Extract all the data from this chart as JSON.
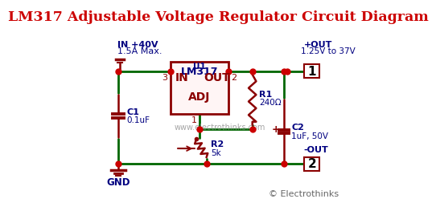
{
  "title": "LM317 Adjustable Voltage Regulator Circuit Diagram",
  "title_color": "#cc0000",
  "title_fontsize": 12.5,
  "bg_color": "#ffffff",
  "wire_color": "#006600",
  "component_color": "#8B0000",
  "label_color": "#000080",
  "node_color": "#cc0000",
  "watermark": "www.electrothinks.com",
  "watermark_color": "#888888",
  "copyright": "© Electrothinks",
  "copyright_color": "#666666",
  "in_label1": "IN +40V",
  "in_label2": "1.5A Max.",
  "out_label1": "+OUT",
  "out_label2": "1.25V to 37V",
  "out_neg_label": "-OUT",
  "gnd_label": "GND",
  "ic_name": "LM317",
  "ic_ref": "U1",
  "c1_label": "C1",
  "c1_val": "0.1uF",
  "c2_label": "C2",
  "c2_val": "1uF, 50V",
  "r1_label": "R1",
  "r1_val": "240Ω",
  "r2_label": "R2",
  "r2_val": "5k"
}
